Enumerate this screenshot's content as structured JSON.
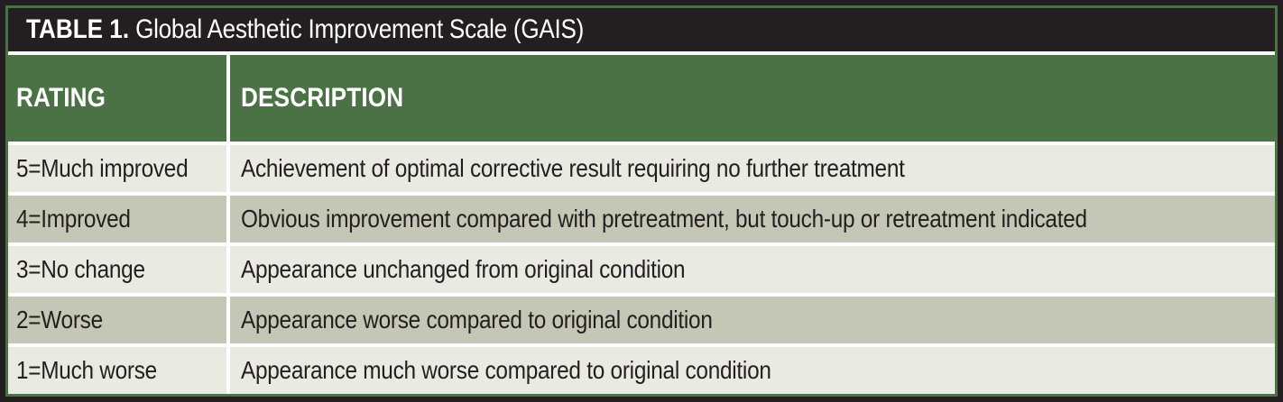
{
  "table": {
    "title": {
      "label_bold": "TABLE 1.",
      "label_rest": " Global Aesthetic Improvement Scale (GAIS)"
    },
    "columns": [
      "RATING",
      "DESCRIPTION"
    ],
    "rows": [
      {
        "rating": "5=Much improved",
        "description": "Achievement of optimal corrective result requiring no further treatment"
      },
      {
        "rating": "4=Improved",
        "description": "Obvious improvement compared with pretreatment, but touch-up or retreatment indicated"
      },
      {
        "rating": "3=No change",
        "description": "Appearance unchanged from original condition"
      },
      {
        "rating": "2=Worse",
        "description": "Appearance worse compared to original condition"
      },
      {
        "rating": "1=Much worse",
        "description": "Appearance much worse compared to original condition"
      }
    ],
    "colors": {
      "frame_black": "#231f20",
      "accent_green": "#4b7245",
      "row_light": "#e9eae2",
      "row_dark": "#c4c6b6",
      "separator_white": "#ffffff",
      "text_dark": "#231f20",
      "text_light": "#ffffff"
    }
  }
}
